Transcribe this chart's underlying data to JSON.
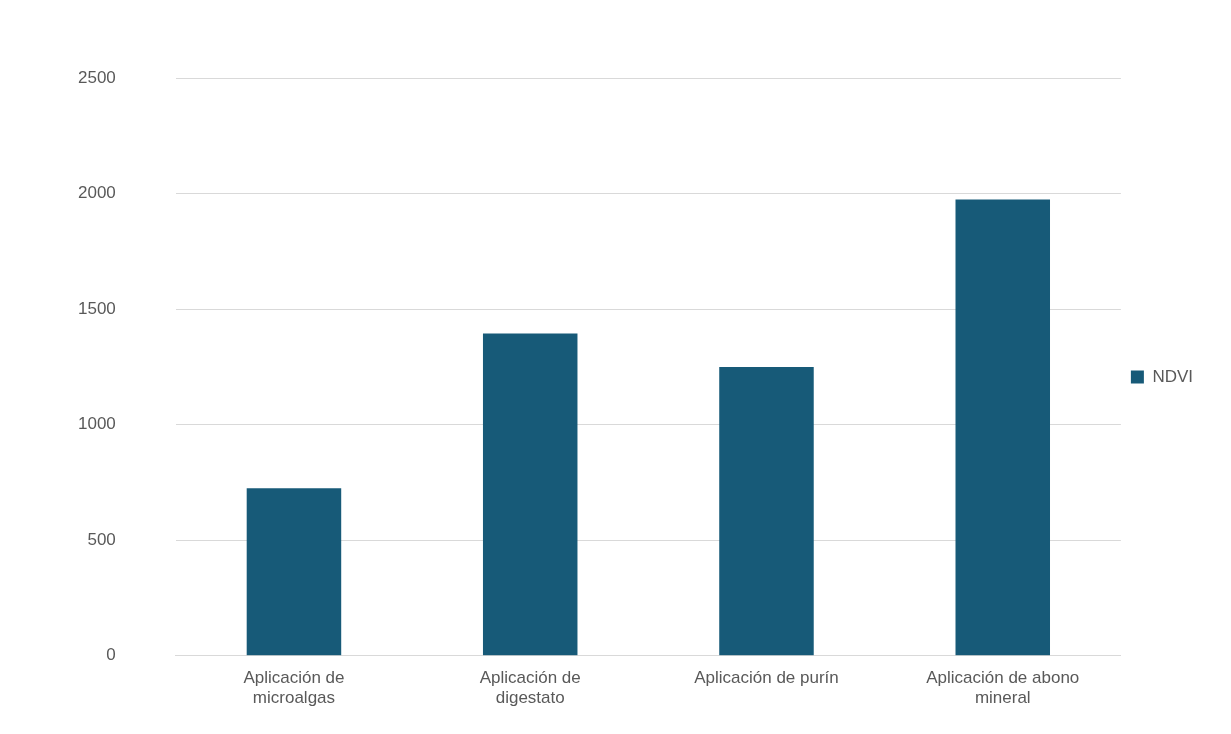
{
  "chart_data": {
    "type": "bar",
    "categories": [
      "Aplicación de microalgas",
      "Aplicación de digestato",
      "Aplicación de purín",
      "Aplicación de abono mineral"
    ],
    "series": [
      {
        "name": "NDVI",
        "color": "#175a78",
        "values": [
          725,
          1395,
          1250,
          1975
        ]
      }
    ],
    "ylim": [
      0,
      2500
    ],
    "yticks": [
      0,
      500,
      1000,
      1500,
      2000,
      2500
    ],
    "grid": "y",
    "legend": "right"
  }
}
